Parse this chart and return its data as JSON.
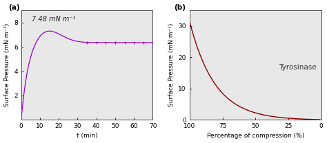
{
  "panel_a": {
    "label": "(a)",
    "annotation": "7.48 mN m⁻¹",
    "line_color": "#9900cc",
    "xlabel": "t (min)",
    "ylabel": "Surface Pressure (mN m⁻¹)",
    "xlim": [
      0,
      70
    ],
    "ylim": [
      0,
      9
    ],
    "yticks": [
      2,
      4,
      6,
      8
    ],
    "xticks": [
      0,
      10,
      20,
      30,
      40,
      50,
      60,
      70
    ],
    "peak_val": 7.48,
    "peak_t": 13.0,
    "plateau_val": 6.35,
    "rise_tau": 3.8,
    "decay_tau": 30.0
  },
  "panel_b": {
    "label": "(b)",
    "annotation": "Tyrosinase",
    "line_color": "#8b0000",
    "xlabel": "Percentage of compression (%)",
    "ylabel": "Surface Pressure (mN m⁻¹)",
    "xlim": [
      100,
      0
    ],
    "ylim": [
      0,
      35
    ],
    "yticks": [
      0,
      10,
      20,
      30
    ],
    "xticks": [
      100,
      75,
      50,
      25,
      0
    ],
    "exp_A": 31.5,
    "exp_k": 0.052
  },
  "axes_facecolor": "#e8e8e8",
  "background_color": "#ffffff",
  "spine_color": "#444444",
  "font_size": 6.5,
  "label_font_size": 6.5,
  "annot_fontsize": 7.0
}
